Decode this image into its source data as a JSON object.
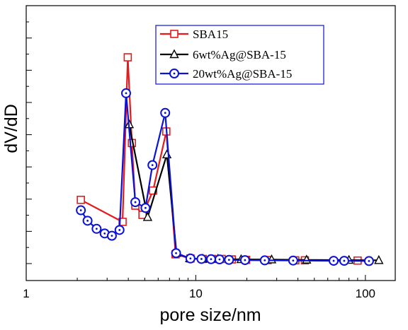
{
  "chart_data": {
    "type": "line",
    "xlabel": "pore size/nm",
    "ylabel": "dV/dD",
    "x_scale": "log",
    "xlim": [
      1,
      150
    ],
    "ylim": [
      0,
      100
    ],
    "x_ticks": [
      {
        "value": 1,
        "label": "1"
      },
      {
        "value": 10,
        "label": "10"
      },
      {
        "value": 100,
        "label": "100"
      }
    ],
    "y_tick_labels": false,
    "legend_position": "top-center",
    "series": [
      {
        "name": "SBA15",
        "color": "#e8191b",
        "marker": "square",
        "x": [
          2.1,
          3.7,
          3.97,
          4.2,
          4.4,
          4.85,
          5.6,
          6.7,
          7.6,
          9.3,
          11.0,
          12.5,
          14.2,
          16.3,
          19.8,
          26.5,
          38.6,
          44.0,
          90.0
        ],
        "y": [
          27.5,
          18.0,
          89.0,
          52.0,
          25.0,
          21.0,
          31.5,
          57.0,
          4.0,
          2.2,
          2.0,
          2.0,
          2.0,
          1.8,
          1.6,
          1.5,
          1.4,
          1.4,
          1.3
        ]
      },
      {
        "name": "6wt%Ag@SBA-15",
        "color": "#000000",
        "marker": "triangle",
        "x": [
          4.05,
          5.2,
          6.75,
          7.7,
          9.2,
          11.0,
          13.5,
          18.5,
          28.0,
          45.0,
          80.0,
          120.0
        ],
        "y": [
          60.0,
          20.0,
          47.0,
          4.5,
          2.2,
          2.0,
          2.0,
          1.8,
          1.7,
          1.6,
          1.5,
          1.4
        ]
      },
      {
        "name": "20wt%Ag@SBA-15",
        "color": "#0b12d8",
        "marker": "circle",
        "x": [
          2.1,
          2.3,
          2.6,
          2.9,
          3.2,
          3.55,
          3.88,
          4.4,
          5.05,
          5.55,
          6.6,
          7.65,
          9.3,
          10.8,
          12.3,
          13.8,
          15.7,
          19.5,
          25.5,
          37.5,
          65.0,
          75.0,
          105.0
        ],
        "y": [
          23.0,
          18.5,
          15.0,
          13.0,
          12.0,
          14.5,
          73.5,
          26.5,
          24.0,
          42.5,
          65.0,
          4.5,
          2.2,
          2.0,
          1.9,
          1.8,
          1.6,
          1.5,
          1.4,
          1.3,
          1.2,
          1.2,
          1.1
        ]
      }
    ]
  }
}
